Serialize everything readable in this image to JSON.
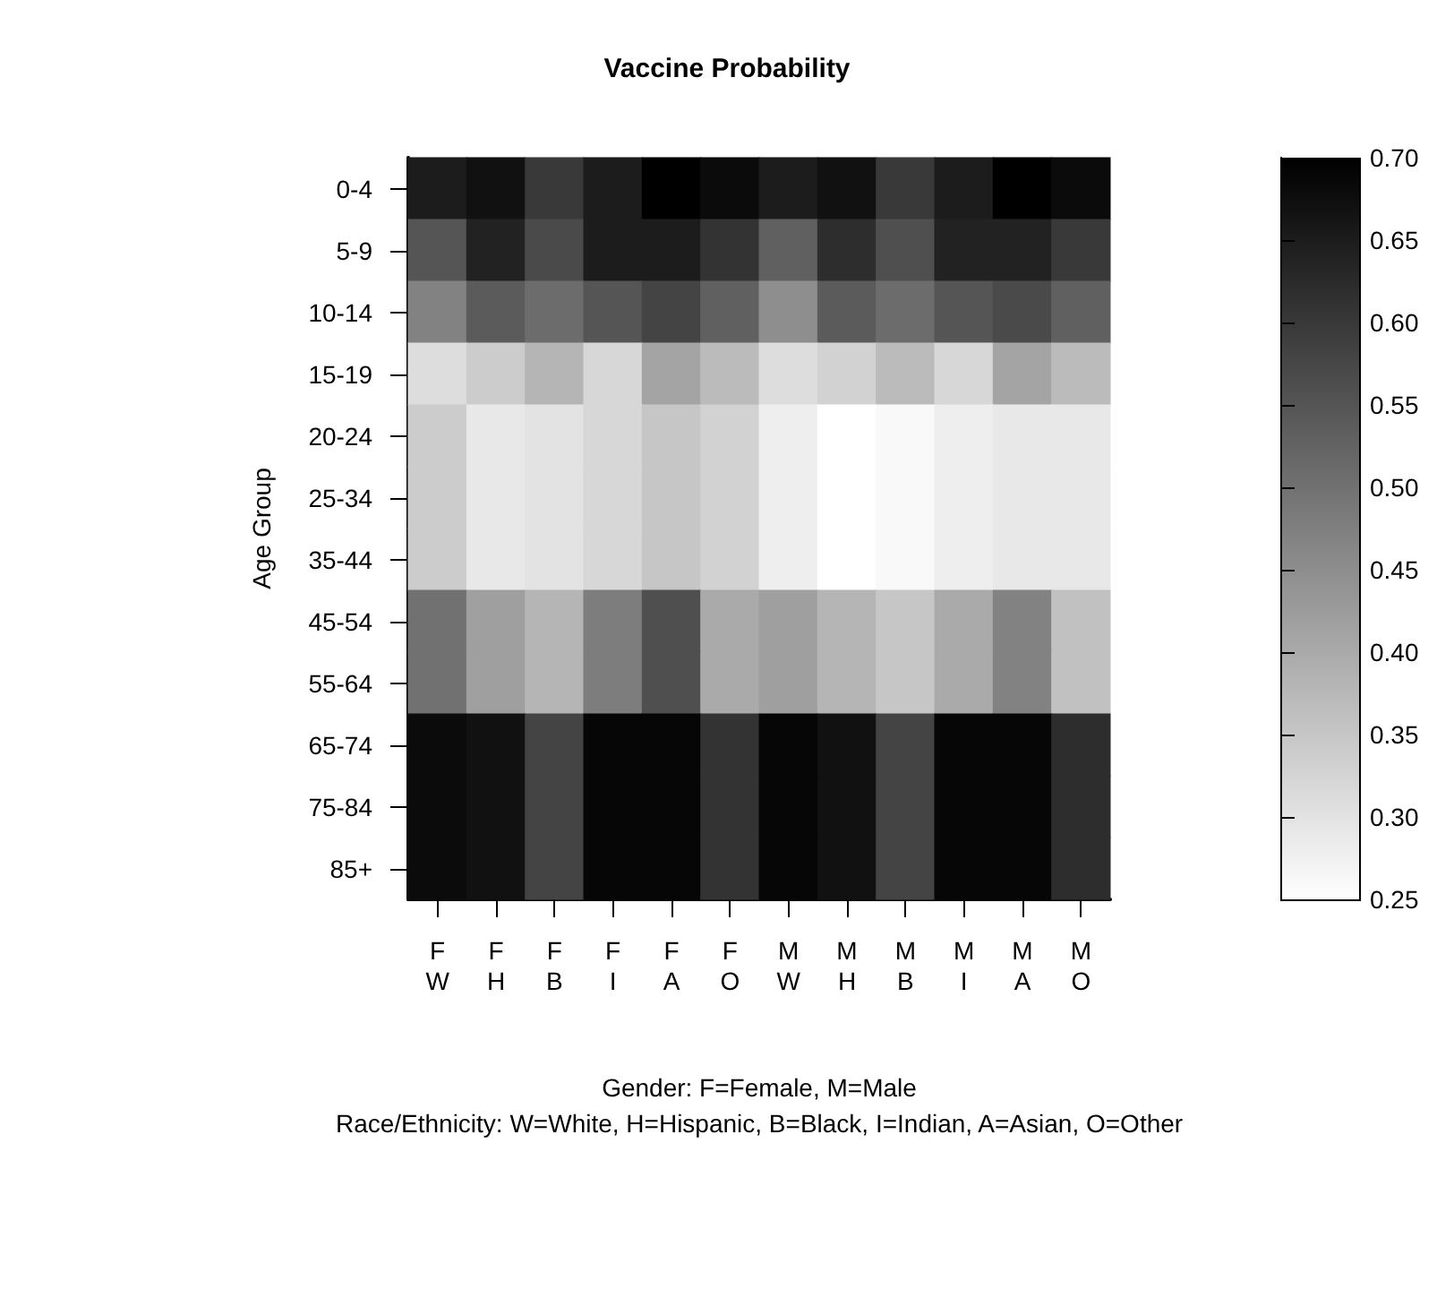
{
  "chart_data": {
    "type": "heatmap",
    "title": "Vaccine Probability",
    "ylabel": "Age Group",
    "xlabel": "Gender: F=Female, M=Male\nRace/Ethnicity: W=White, H=Hispanic, B=Black, I=Indian, A=Asian, O=Other",
    "categories": [
      "F\nW",
      "F\nH",
      "F\nB",
      "F\nI",
      "F\nA",
      "F\nO",
      "M\nW",
      "M\nH",
      "M\nB",
      "M\nI",
      "M\nA",
      "M\nO"
    ],
    "y_categories": [
      "0-4",
      "5-9",
      "10-14",
      "15-19",
      "20-24",
      "25-34",
      "35-44",
      "45-54",
      "55-64",
      "65-74",
      "75-84",
      "85+"
    ],
    "cells": [
      [
        0.65,
        0.67,
        0.6,
        0.65,
        0.7,
        0.68,
        0.65,
        0.67,
        0.6,
        0.65,
        0.7,
        0.68
      ],
      [
        0.55,
        0.64,
        0.57,
        0.65,
        0.65,
        0.61,
        0.53,
        0.62,
        0.56,
        0.64,
        0.64,
        0.6
      ],
      [
        0.47,
        0.54,
        0.51,
        0.55,
        0.58,
        0.53,
        0.45,
        0.54,
        0.51,
        0.55,
        0.57,
        0.53
      ],
      [
        0.31,
        0.34,
        0.38,
        0.32,
        0.41,
        0.37,
        0.31,
        0.33,
        0.37,
        0.32,
        0.41,
        0.37
      ],
      [
        0.34,
        0.29,
        0.3,
        0.32,
        0.35,
        0.33,
        0.28,
        0.25,
        0.26,
        0.28,
        0.29,
        0.29
      ],
      [
        0.34,
        0.29,
        0.3,
        0.32,
        0.35,
        0.33,
        0.28,
        0.25,
        0.26,
        0.28,
        0.29,
        0.29
      ],
      [
        0.34,
        0.29,
        0.3,
        0.32,
        0.35,
        0.33,
        0.28,
        0.25,
        0.26,
        0.28,
        0.29,
        0.29
      ],
      [
        0.5,
        0.42,
        0.38,
        0.48,
        0.56,
        0.4,
        0.42,
        0.38,
        0.35,
        0.4,
        0.47,
        0.36
      ],
      [
        0.5,
        0.42,
        0.38,
        0.48,
        0.56,
        0.4,
        0.42,
        0.38,
        0.35,
        0.4,
        0.47,
        0.36
      ],
      [
        0.68,
        0.67,
        0.58,
        0.69,
        0.69,
        0.61,
        0.69,
        0.67,
        0.58,
        0.69,
        0.69,
        0.62
      ],
      [
        0.68,
        0.67,
        0.58,
        0.69,
        0.69,
        0.61,
        0.69,
        0.67,
        0.58,
        0.69,
        0.69,
        0.62
      ],
      [
        0.68,
        0.67,
        0.58,
        0.69,
        0.69,
        0.61,
        0.69,
        0.67,
        0.58,
        0.69,
        0.69,
        0.62
      ]
    ],
    "clim": [
      0.25,
      0.7
    ],
    "cticks": [
      {
        "value": 0.25,
        "label": "0.25"
      },
      {
        "value": 0.3,
        "label": "0.30"
      },
      {
        "value": 0.35,
        "label": "0.35"
      },
      {
        "value": 0.4,
        "label": "0.40"
      },
      {
        "value": 0.45,
        "label": "0.45"
      },
      {
        "value": 0.5,
        "label": "0.50"
      },
      {
        "value": 0.55,
        "label": "0.55"
      },
      {
        "value": 0.6,
        "label": "0.60"
      },
      {
        "value": 0.65,
        "label": "0.65"
      },
      {
        "value": 0.7,
        "label": "0.70"
      }
    ]
  }
}
